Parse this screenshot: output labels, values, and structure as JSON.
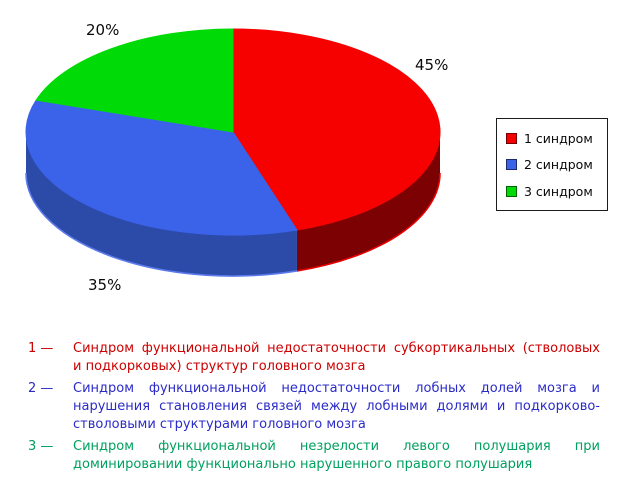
{
  "chart_data": {
    "type": "pie",
    "style": "3d",
    "title": "",
    "direction": "clockwise",
    "start_angle_deg": -90,
    "legend_position": "right",
    "units": "%",
    "slices": [
      {
        "label": "1 синдром",
        "value": 45,
        "percent_label": "45%",
        "color": "#f70000",
        "side_color": "#7b0103",
        "rim_color": "#e60000"
      },
      {
        "label": "2 синдром",
        "value": 35,
        "percent_label": "35%",
        "color": "#3b63e9",
        "side_color": "#2c4ba8",
        "rim_color": "#5b79ea"
      },
      {
        "label": "3 синдром",
        "value": 20,
        "percent_label": "20%",
        "color": "#00da06",
        "side_color": "#009700",
        "rim_color": "#00c000"
      }
    ]
  },
  "footnotes": {
    "items": [
      {
        "marker": "1 —",
        "color": "#cc0000",
        "lines": [
          "Синдром функциональной недостаточности субкортикальных (стволовых",
          "и подкорковых) структур головного мозга"
        ]
      },
      {
        "marker": "2 —",
        "color": "#2b2bc8",
        "lines": [
          "Синдром функциональной недостаточности лобных долей мозга и",
          "нарушения становления связей между лобными долями и подкорково-",
          "стволовыми структурами головного мозга"
        ]
      },
      {
        "marker": "3 —",
        "color": "#00a060",
        "lines": [
          "Синдром функциональной незрелости левого полушария при",
          "доминировании функционально нарушенного правого полушария"
        ]
      }
    ]
  }
}
